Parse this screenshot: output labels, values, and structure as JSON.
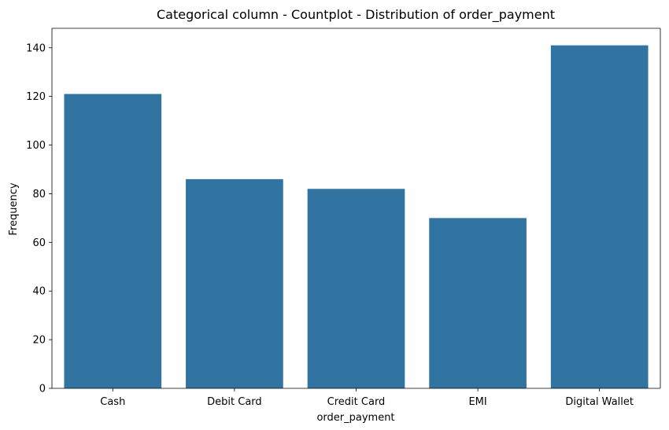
{
  "chart_data": {
    "type": "bar",
    "title": "Categorical column - Countplot - Distribution of order_payment",
    "xlabel": "order_payment",
    "ylabel": "Frequency",
    "categories": [
      "Cash",
      "Debit Card",
      "Credit Card",
      "EMI",
      "Digital Wallet"
    ],
    "values": [
      121,
      86,
      82,
      70,
      141
    ],
    "ylim": [
      0,
      148
    ],
    "yticks": [
      0,
      20,
      40,
      60,
      80,
      100,
      120,
      140
    ],
    "grid": false,
    "bar_color": "#3274a1"
  }
}
